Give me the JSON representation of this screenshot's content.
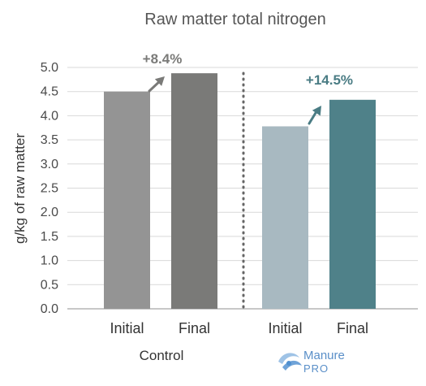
{
  "chart_data": {
    "type": "bar",
    "title": "Raw matter total nitrogen",
    "ylabel": "g/kg of raw matter",
    "xlabel": "",
    "ylim": [
      0,
      5.0
    ],
    "yticks": [
      "0.0",
      "0.5",
      "1.0",
      "1.5",
      "2.0",
      "2.5",
      "3.0",
      "3.5",
      "4.0",
      "4.5",
      "5.0"
    ],
    "grid": true,
    "groups": [
      {
        "name": "Control",
        "bars": [
          {
            "category": "Initial",
            "value": 4.5,
            "color": "#949494"
          },
          {
            "category": "Final",
            "value": 4.88,
            "color": "#7a7a78"
          }
        ],
        "change_label": "+8.4%",
        "change_color": "#7a7a78"
      },
      {
        "name": "Manure PRO",
        "bars": [
          {
            "category": "Initial",
            "value": 3.78,
            "color": "#a8b9c1"
          },
          {
            "category": "Final",
            "value": 4.33,
            "color": "#4f8189"
          }
        ],
        "change_label": "+14.5%",
        "change_color": "#4a7c84"
      }
    ],
    "logo": {
      "line1": "Manure",
      "line2": "PRO",
      "icon": "manure-pro-logo-icon"
    },
    "separator": "dotted-vertical-line"
  }
}
